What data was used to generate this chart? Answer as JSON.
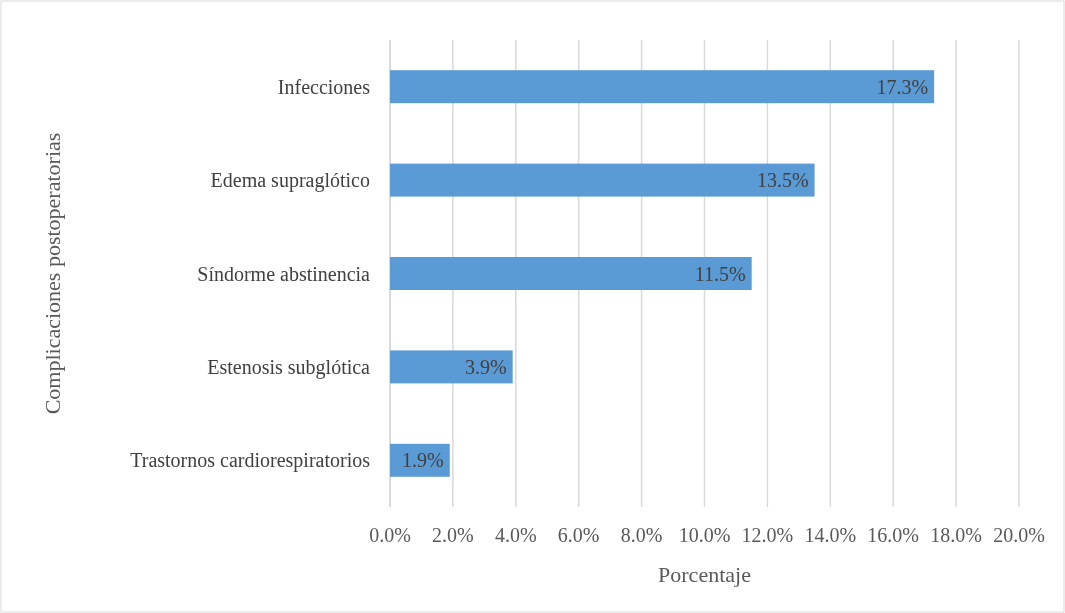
{
  "chart_data": {
    "type": "bar",
    "orientation": "horizontal",
    "xlabel": "Porcentaje",
    "ylabel": "Complicaciones postoperatorias",
    "categories": [
      "Infecciones",
      "Edema supraglótico",
      "Síndorme abstinencia",
      "Estenosis subglótica",
      "Trastornos cardiorespiratorios"
    ],
    "values": [
      17.3,
      13.5,
      11.5,
      3.9,
      1.9
    ],
    "value_labels": [
      "17.3%",
      "13.5%",
      "11.5%",
      "3.9%",
      "1.9%"
    ],
    "color": "#5b9bd5",
    "xlim": [
      0,
      20
    ],
    "xticks": [
      {
        "value": 0,
        "label": "0.0%"
      },
      {
        "value": 2,
        "label": "2.0%"
      },
      {
        "value": 4,
        "label": "4.0%"
      },
      {
        "value": 6,
        "label": "6.0%"
      },
      {
        "value": 8,
        "label": "8.0%"
      },
      {
        "value": 10,
        "label": "10.0%"
      },
      {
        "value": 12,
        "label": "12.0%"
      },
      {
        "value": 14,
        "label": "14.0%"
      },
      {
        "value": 16,
        "label": "16.0%"
      },
      {
        "value": 18,
        "label": "18.0%"
      },
      {
        "value": 20,
        "label": "20.0%"
      }
    ],
    "grid": "x"
  }
}
